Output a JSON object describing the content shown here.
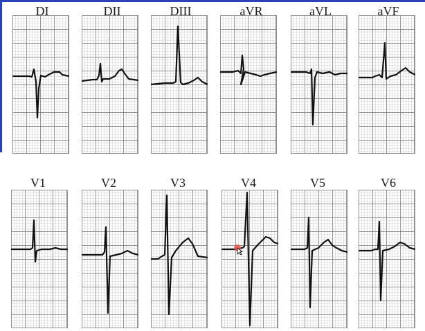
{
  "colors": {
    "grid_major": "#8f8f8f",
    "grid_minor": "#cfcfcf",
    "trace": "#111111",
    "frame": "#2b3fb6",
    "cursor_dot": "#e8534a"
  },
  "leads_top": [
    {
      "label": "DI"
    },
    {
      "label": "DII"
    },
    {
      "label": "DIII"
    },
    {
      "label": "aVR"
    },
    {
      "label": "aVL"
    },
    {
      "label": "aVF"
    }
  ],
  "leads_bottom": [
    {
      "label": "V1"
    },
    {
      "label": "V2"
    },
    {
      "label": "V3"
    },
    {
      "label": "V4"
    },
    {
      "label": "V5"
    },
    {
      "label": "V6"
    }
  ],
  "cursor": {
    "icon": "mouse-pointer-icon"
  }
}
